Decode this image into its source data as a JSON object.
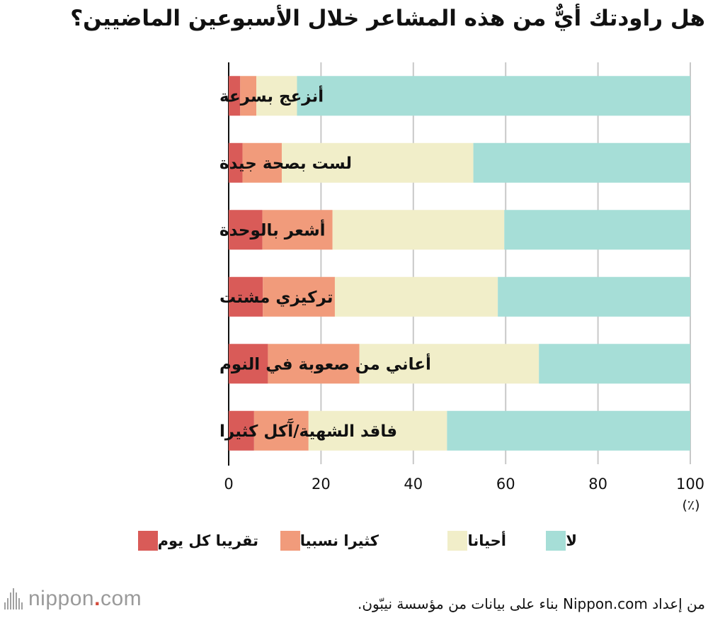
{
  "title": "هل راودتك أيٌّ من هذه المشاعر خلال الأسبوعين الماضيين؟",
  "chart_data": {
    "type": "bar",
    "orientation": "horizontal",
    "stacked": true,
    "title": "هل راودتك أيٌّ من هذه المشاعر خلال الأسبوعين الماضيين؟",
    "categories": [
      "أنزعج بسرعة",
      "لست بصحة جيدة",
      "أشعر بالوحدة",
      "تركيزي مشتت",
      "أعاني من صعوبة في النوم",
      "فاقد الشهية/آَكل كثيرا"
    ],
    "series": [
      {
        "name": "تقريبا كل يوم",
        "color": "#d95b58",
        "values": [
          2.5,
          3.0,
          7.3,
          7.4,
          8.5,
          5.5
        ]
      },
      {
        "name": "كثيرا نسبيا",
        "color": "#f19b7b",
        "values": [
          3.5,
          8.5,
          15.2,
          15.6,
          19.8,
          11.8
        ]
      },
      {
        "name": "أحيانا",
        "color": "#f1eec9",
        "values": [
          8.8,
          41.5,
          37.2,
          35.3,
          38.9,
          30.0
        ]
      },
      {
        "name": "لا",
        "color": "#a6ded7",
        "values": [
          85.2,
          47.0,
          40.3,
          41.7,
          32.8,
          52.7
        ]
      }
    ],
    "xlim": [
      0,
      100
    ],
    "xticks": [
      "0",
      "20",
      "40",
      "60",
      "80",
      "100"
    ],
    "xunit": "(٪)",
    "grid": true
  },
  "legend": [
    {
      "label": "لا",
      "color": "#a6ded7"
    },
    {
      "label": "أحيانا",
      "color": "#f1eec9"
    },
    {
      "label": "كثيرا نسبيا",
      "color": "#f19b7b"
    },
    {
      "label": "تقريبا كل يوم",
      "color": "#d95b58"
    }
  ],
  "source": "من إعداد Nippon.com بناء على بيانات من مؤسسة نيبّون.",
  "logo": {
    "name": "nippon",
    "dot": ".",
    "domain": "com"
  }
}
